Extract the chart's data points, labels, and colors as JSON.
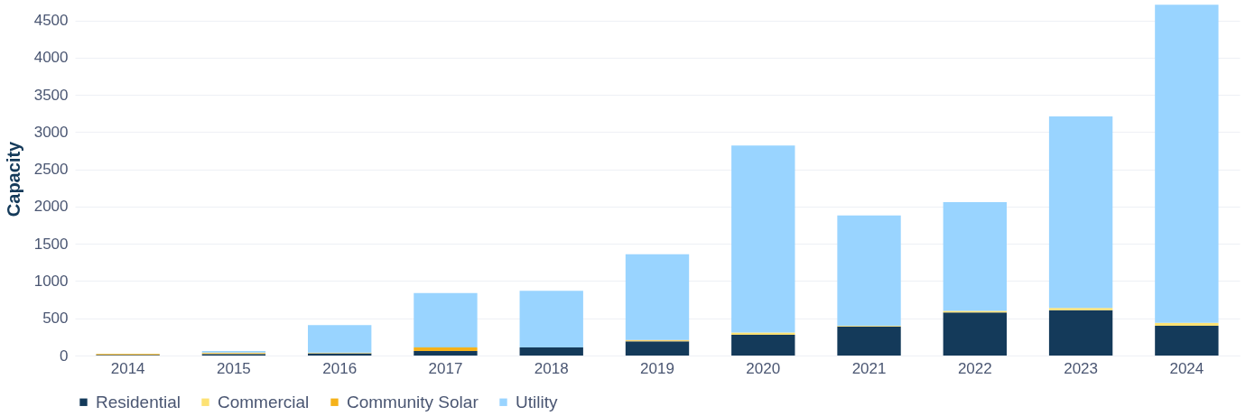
{
  "chart_data": {
    "type": "bar",
    "ylabel": "Capacity",
    "categories": [
      "2014",
      "2015",
      "2016",
      "2017",
      "2018",
      "2019",
      "2020",
      "2021",
      "2022",
      "2023",
      "2024"
    ],
    "stacked": true,
    "series": [
      {
        "name": "Residential",
        "color": "#143a5a",
        "values": [
          10,
          20,
          30,
          60,
          110,
          190,
          280,
          390,
          580,
          610,
          400
        ]
      },
      {
        "name": "Commercial",
        "color": "#fde274",
        "values": [
          0,
          10,
          10,
          0,
          0,
          10,
          30,
          10,
          20,
          30,
          40
        ]
      },
      {
        "name": "Community Solar",
        "color": "#f5b21a",
        "values": [
          10,
          10,
          0,
          50,
          0,
          10,
          0,
          0,
          0,
          0,
          0
        ]
      },
      {
        "name": "Utility",
        "color": "#99d4ff",
        "values": [
          0,
          20,
          370,
          730,
          760,
          1150,
          2510,
          1480,
          1460,
          2570,
          4270
        ]
      }
    ],
    "ylim": [
      0,
      4750
    ],
    "yticks": [
      0,
      500,
      1000,
      1500,
      2000,
      2500,
      3000,
      3500,
      4000,
      4500
    ],
    "grid": "y",
    "legend": "bottom"
  }
}
